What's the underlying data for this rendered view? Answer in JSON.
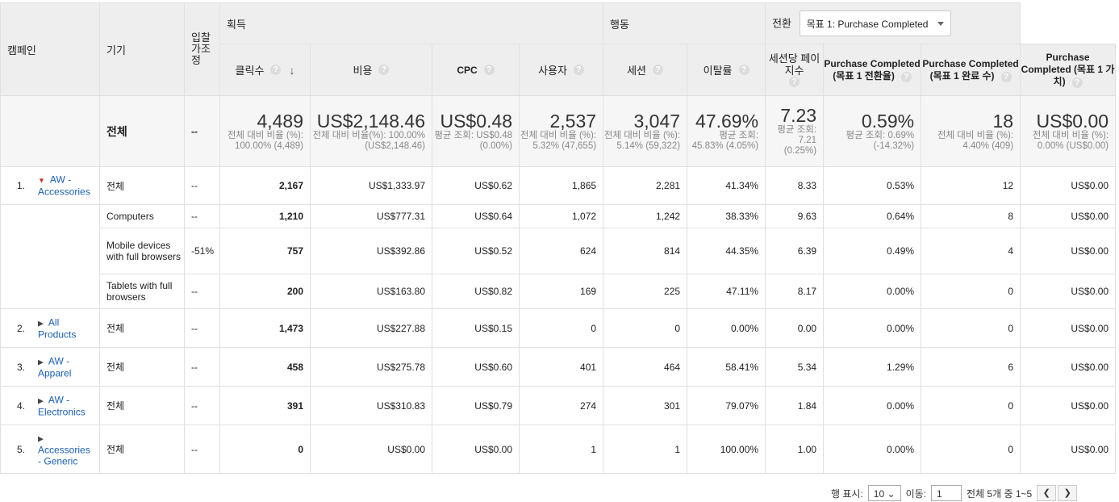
{
  "headers": {
    "campaign": "캠페인",
    "device": "기기",
    "bid_adjust": "입찰 가조 정",
    "group_acquisition": "획득",
    "group_behavior": "행동",
    "group_conversion": "전환",
    "goal_select": "목표 1: Purchase Completed",
    "clicks": "클릭수",
    "cost": "비용",
    "cpc": "CPC",
    "users": "사용자",
    "sessions": "세션",
    "bounce": "이탈률",
    "pages": "세션당 페이지수",
    "conv_rate": "Purchase Completed (목표 1 전환율)",
    "completions": "Purchase Completed (목표 1 완료 수)",
    "value": "Purchase Completed (목표 1 가치)"
  },
  "totals": {
    "label": "전체",
    "bid": "--",
    "clicks": {
      "big": "4,489",
      "sub": "전체 대비 비율 (%): 100.00% (4,489)"
    },
    "cost": {
      "big": "US$2,148.46",
      "sub": "전체 대비 비율(%): 100.00% (US$2,148.46)"
    },
    "cpc": {
      "big": "US$0.48",
      "sub": "평균 조회: US$0.48 (0.00%)"
    },
    "users": {
      "big": "2,537",
      "sub": "전체 대비 비율 (%): 5.32% (47,655)"
    },
    "sessions": {
      "big": "3,047",
      "sub": "전체 대비 비율 (%): 5.14% (59,322)"
    },
    "bounce": {
      "big": "47.69%",
      "sub": "평균 조회: 45.83% (4.05%)"
    },
    "pages": {
      "big": "7.23",
      "sub": "평균 조회: 7.21 (0.25%)"
    },
    "conv_rate": {
      "big": "0.59%",
      "sub": "평균 조회: 0.69% (-14.32%)"
    },
    "completions": {
      "big": "18",
      "sub": "전체 대비 비율 (%): 4.40% (409)"
    },
    "value": {
      "big": "US$0.00",
      "sub": "전체 대비 비율 (%): 0.00% (US$0.00)"
    }
  },
  "rows": [
    {
      "idx": "1.",
      "campaign": "AW - Accessories",
      "device": "전체",
      "bid": "--",
      "clicks": "2,167",
      "cost": "US$1,333.97",
      "cpc": "US$0.62",
      "users": "1,865",
      "sessions": "2,281",
      "bounce": "41.34%",
      "pages": "8.33",
      "conv_rate": "0.53%",
      "completions": "12",
      "value": "US$0.00"
    },
    {
      "idx": "",
      "campaign": "",
      "device": "Computers",
      "bid": "--",
      "clicks": "1,210",
      "cost": "US$777.31",
      "cpc": "US$0.64",
      "users": "1,072",
      "sessions": "1,242",
      "bounce": "38.33%",
      "pages": "9.63",
      "conv_rate": "0.64%",
      "completions": "8",
      "value": "US$0.00"
    },
    {
      "idx": "",
      "campaign": "",
      "device": "Mobile devices with full browsers",
      "bid": "-51%",
      "clicks": "757",
      "cost": "US$392.86",
      "cpc": "US$0.52",
      "users": "624",
      "sessions": "814",
      "bounce": "44.35%",
      "pages": "6.39",
      "conv_rate": "0.49%",
      "completions": "4",
      "value": "US$0.00"
    },
    {
      "idx": "",
      "campaign": "",
      "device": "Tablets with full browsers",
      "bid": "--",
      "clicks": "200",
      "cost": "US$163.80",
      "cpc": "US$0.82",
      "users": "169",
      "sessions": "225",
      "bounce": "47.11%",
      "pages": "8.17",
      "conv_rate": "0.00%",
      "completions": "0",
      "value": "US$0.00"
    },
    {
      "idx": "2.",
      "campaign": "All Products",
      "device": "전체",
      "bid": "--",
      "clicks": "1,473",
      "cost": "US$227.88",
      "cpc": "US$0.15",
      "users": "0",
      "sessions": "0",
      "bounce": "0.00%",
      "pages": "0.00",
      "conv_rate": "0.00%",
      "completions": "0",
      "value": "US$0.00"
    },
    {
      "idx": "3.",
      "campaign": "AW - Apparel",
      "device": "전체",
      "bid": "--",
      "clicks": "458",
      "cost": "US$275.78",
      "cpc": "US$0.60",
      "users": "401",
      "sessions": "464",
      "bounce": "58.41%",
      "pages": "5.34",
      "conv_rate": "1.29%",
      "completions": "6",
      "value": "US$0.00"
    },
    {
      "idx": "4.",
      "campaign": "AW - Electronics",
      "device": "전체",
      "bid": "--",
      "clicks": "391",
      "cost": "US$310.83",
      "cpc": "US$0.79",
      "users": "274",
      "sessions": "301",
      "bounce": "79.07%",
      "pages": "1.84",
      "conv_rate": "0.00%",
      "completions": "0",
      "value": "US$0.00"
    },
    {
      "idx": "5.",
      "campaign": "Accessories - Generic",
      "device": "전체",
      "bid": "--",
      "clicks": "0",
      "cost": "US$0.00",
      "cpc": "US$0.00",
      "users": "1",
      "sessions": "1",
      "bounce": "100.00%",
      "pages": "1.00",
      "conv_rate": "0.00%",
      "completions": "0",
      "value": "US$0.00"
    }
  ],
  "footer": {
    "rows_label": "행 표시:",
    "rows_value": "10",
    "goto_label": "이동:",
    "goto_value": "1",
    "range_text": "전체 5개 중 1~5"
  }
}
